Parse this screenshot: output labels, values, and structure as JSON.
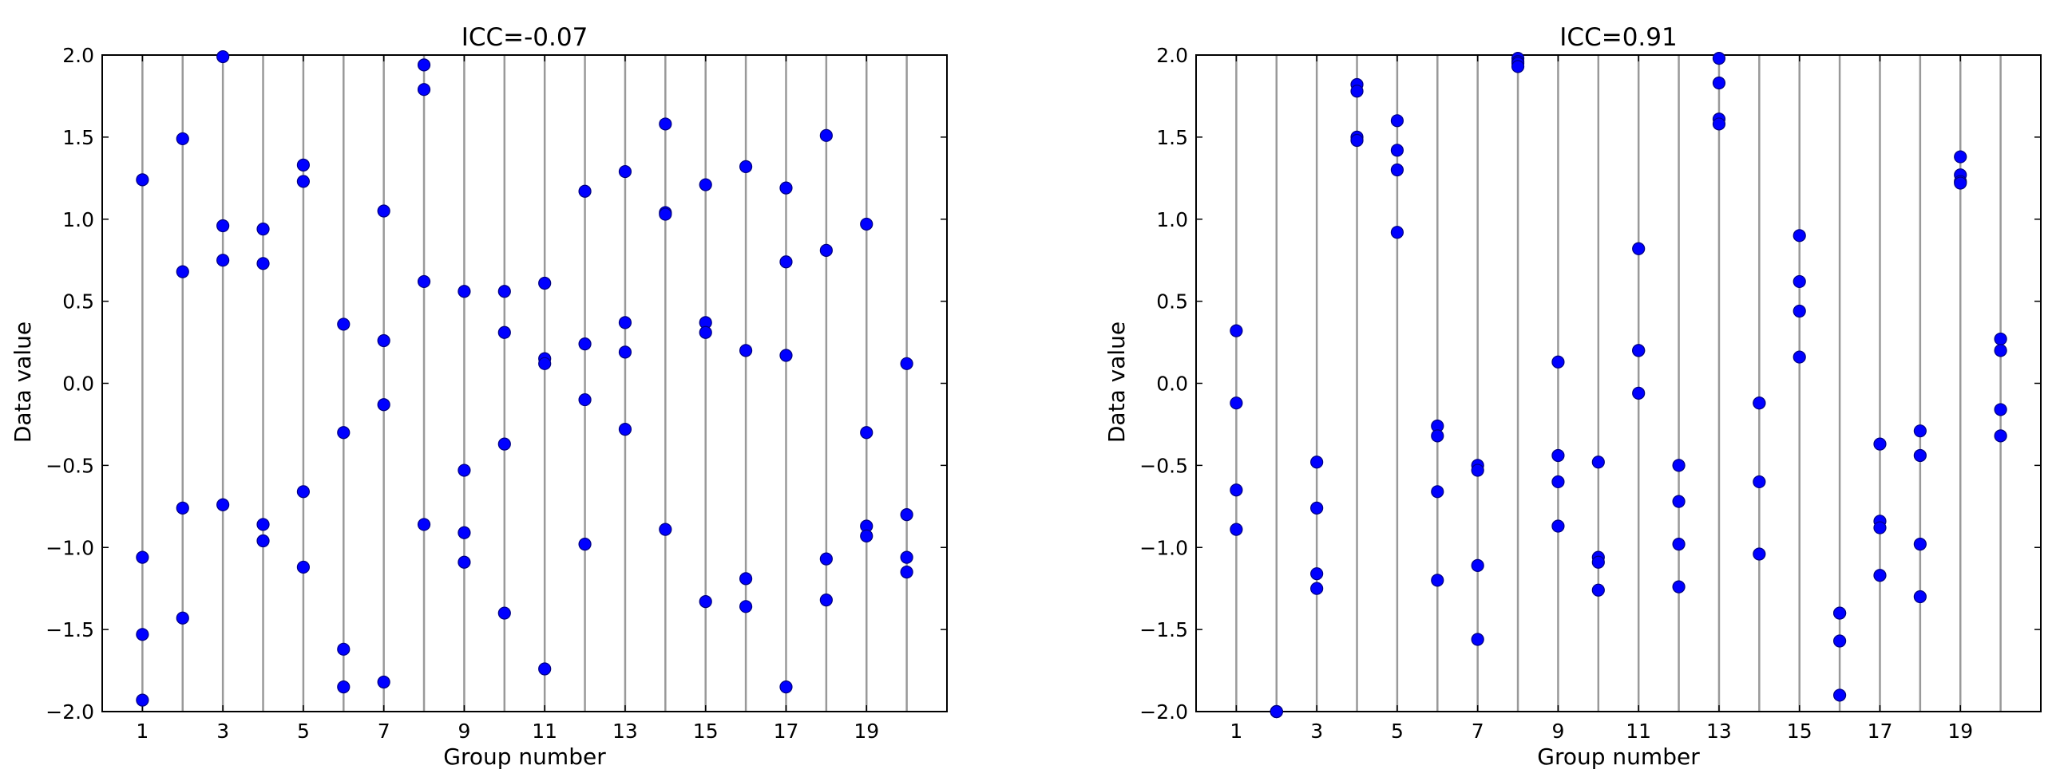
{
  "colors": {
    "marker_fill": "#0000ff",
    "marker_edge": "#000080",
    "group_line": "#999999",
    "axes_frame": "#000000",
    "background": "#ffffff"
  },
  "chart_data": [
    {
      "type": "scatter",
      "title": "ICC=-0.07",
      "xlabel": "Group number",
      "ylabel": "Data value",
      "xlim": [
        0,
        21
      ],
      "ylim": [
        -2.0,
        2.0
      ],
      "xticks": [
        1,
        3,
        5,
        7,
        9,
        11,
        13,
        15,
        17,
        19
      ],
      "xtick_labels": [
        "1",
        "3",
        "5",
        "7",
        "9",
        "11",
        "13",
        "15",
        "17",
        "19"
      ],
      "yticks": [
        -2.0,
        -1.5,
        -1.0,
        -0.5,
        0.0,
        0.5,
        1.0,
        1.5,
        2.0
      ],
      "ytick_labels": [
        "−2.0",
        "−1.5",
        "−1.0",
        "−0.5",
        "0.0",
        "0.5",
        "1.0",
        "1.5",
        "2.0"
      ],
      "grid": "vertical line at each group",
      "points": [
        {
          "x": 1,
          "y": [
            1.24,
            -1.06,
            -1.53,
            -1.93
          ]
        },
        {
          "x": 2,
          "y": [
            1.49,
            0.68,
            -0.76,
            -1.43
          ]
        },
        {
          "x": 3,
          "y": [
            1.99,
            0.96,
            0.75,
            -0.74
          ]
        },
        {
          "x": 4,
          "y": [
            0.94,
            0.73,
            -0.86,
            -0.96
          ]
        },
        {
          "x": 5,
          "y": [
            1.33,
            1.23,
            -0.66,
            -1.12
          ]
        },
        {
          "x": 6,
          "y": [
            0.36,
            -0.3,
            -1.62,
            -1.85
          ]
        },
        {
          "x": 7,
          "y": [
            1.05,
            0.26,
            -0.13,
            -1.82
          ]
        },
        {
          "x": 8,
          "y": [
            1.94,
            1.79,
            0.62,
            -0.86
          ]
        },
        {
          "x": 9,
          "y": [
            0.56,
            -0.53,
            -0.91,
            -1.09
          ]
        },
        {
          "x": 10,
          "y": [
            0.56,
            0.31,
            -0.37,
            -1.4
          ]
        },
        {
          "x": 11,
          "y": [
            0.61,
            0.15,
            0.12,
            -1.74
          ]
        },
        {
          "x": 12,
          "y": [
            1.17,
            0.24,
            -0.1,
            -0.98
          ]
        },
        {
          "x": 13,
          "y": [
            1.29,
            0.37,
            0.19,
            -0.28
          ]
        },
        {
          "x": 14,
          "y": [
            1.58,
            1.04,
            1.03,
            -0.89
          ]
        },
        {
          "x": 15,
          "y": [
            1.21,
            0.37,
            0.31,
            -1.33
          ]
        },
        {
          "x": 16,
          "y": [
            1.32,
            0.2,
            -1.19,
            -1.36
          ]
        },
        {
          "x": 17,
          "y": [
            1.19,
            0.74,
            0.17,
            -1.85
          ]
        },
        {
          "x": 18,
          "y": [
            1.51,
            0.81,
            -1.07,
            -1.32
          ]
        },
        {
          "x": 19,
          "y": [
            0.97,
            -0.3,
            -0.87,
            -0.93
          ]
        },
        {
          "x": 20,
          "y": [
            0.12,
            -0.8,
            -1.06,
            -1.15
          ]
        }
      ]
    },
    {
      "type": "scatter",
      "title": "ICC=0.91",
      "xlabel": "Group number",
      "ylabel": "Data value",
      "xlim": [
        0,
        21
      ],
      "ylim": [
        -2.0,
        2.0
      ],
      "xticks": [
        1,
        3,
        5,
        7,
        9,
        11,
        13,
        15,
        17,
        19
      ],
      "xtick_labels": [
        "1",
        "3",
        "5",
        "7",
        "9",
        "11",
        "13",
        "15",
        "17",
        "19"
      ],
      "yticks": [
        -2.0,
        -1.5,
        -1.0,
        -0.5,
        0.0,
        0.5,
        1.0,
        1.5,
        2.0
      ],
      "ytick_labels": [
        "−2.0",
        "−1.5",
        "−1.0",
        "−0.5",
        "0.0",
        "0.5",
        "1.0",
        "1.5",
        "2.0"
      ],
      "grid": "vertical line at each group",
      "points": [
        {
          "x": 1,
          "y": [
            0.32,
            -0.12,
            -0.65,
            -0.89
          ]
        },
        {
          "x": 2,
          "y": [
            -2.0,
            -2.0,
            -2.0,
            -2.0
          ]
        },
        {
          "x": 3,
          "y": [
            -0.48,
            -0.76,
            -1.16,
            -1.25
          ]
        },
        {
          "x": 4,
          "y": [
            1.82,
            1.78,
            1.5,
            1.48
          ]
        },
        {
          "x": 5,
          "y": [
            1.6,
            1.42,
            1.3,
            0.92
          ]
        },
        {
          "x": 6,
          "y": [
            -0.26,
            -0.32,
            -0.66,
            -1.2
          ]
        },
        {
          "x": 7,
          "y": [
            -0.5,
            -0.53,
            -1.11,
            -1.56
          ]
        },
        {
          "x": 8,
          "y": [
            1.98,
            1.96,
            1.95,
            1.93
          ]
        },
        {
          "x": 9,
          "y": [
            0.13,
            -0.44,
            -0.6,
            -0.87
          ]
        },
        {
          "x": 10,
          "y": [
            -0.48,
            -1.06,
            -1.09,
            -1.26
          ]
        },
        {
          "x": 11,
          "y": [
            0.82,
            0.2,
            0.2,
            -0.06
          ]
        },
        {
          "x": 12,
          "y": [
            -0.5,
            -0.72,
            -0.98,
            -1.24
          ]
        },
        {
          "x": 13,
          "y": [
            1.98,
            1.83,
            1.61,
            1.58
          ]
        },
        {
          "x": 14,
          "y": [
            -0.12,
            -0.12,
            -0.6,
            -1.04
          ]
        },
        {
          "x": 15,
          "y": [
            0.9,
            0.62,
            0.44,
            0.16
          ]
        },
        {
          "x": 16,
          "y": [
            -1.4,
            -1.4,
            -1.57,
            -1.9
          ]
        },
        {
          "x": 17,
          "y": [
            -0.37,
            -0.84,
            -0.88,
            -1.17
          ]
        },
        {
          "x": 18,
          "y": [
            -0.29,
            -0.44,
            -0.98,
            -1.3
          ]
        },
        {
          "x": 19,
          "y": [
            1.38,
            1.27,
            1.23,
            1.22
          ]
        },
        {
          "x": 20,
          "y": [
            0.27,
            0.2,
            -0.16,
            -0.32
          ]
        }
      ]
    }
  ]
}
